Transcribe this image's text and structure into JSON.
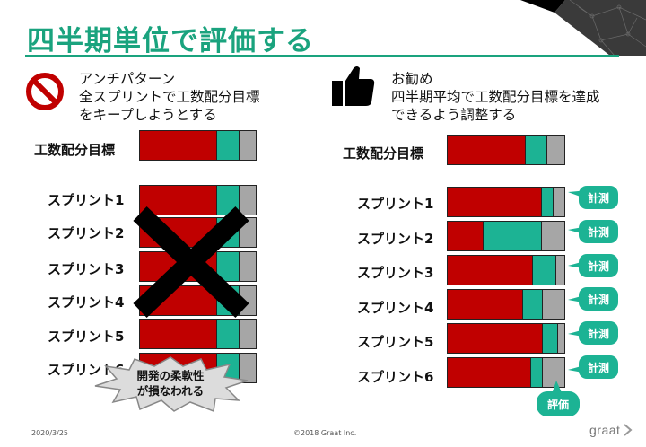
{
  "title": "四半期単位で評価する",
  "anti": {
    "lines": [
      "アンチパターン",
      "全スプリントで工数配分目標",
      "をキープしようとする"
    ],
    "icon": "no-entry-icon"
  },
  "recommended": {
    "lines": [
      "お勧め",
      "四半期平均で工数配分目標を達成",
      "できるよう調整する"
    ],
    "icon": "thumbs-up-icon"
  },
  "left": {
    "target_label": "工数配分目標",
    "target_ratio": [
      0.66,
      0.19,
      0.15
    ],
    "sprints": [
      {
        "label": "スプリント1",
        "ratio": [
          0.66,
          0.19,
          0.15
        ]
      },
      {
        "label": "スプリント2",
        "ratio": [
          0.66,
          0.19,
          0.15
        ]
      },
      {
        "label": "スプリント3",
        "ratio": [
          0.66,
          0.19,
          0.15
        ]
      },
      {
        "label": "スプリント4",
        "ratio": [
          0.66,
          0.19,
          0.15
        ]
      },
      {
        "label": "スプリント5",
        "ratio": [
          0.66,
          0.19,
          0.15
        ]
      },
      {
        "label": "スプリント6",
        "ratio": [
          0.66,
          0.19,
          0.15
        ]
      }
    ],
    "cross_icon": "cross-mark-icon",
    "burst_lines": [
      "開発の柔軟性",
      "が損なわれる"
    ]
  },
  "right": {
    "target_label": "工数配分目標",
    "target_ratio": [
      0.66,
      0.19,
      0.15
    ],
    "sprints": [
      {
        "label": "スプリント1",
        "ratio": [
          0.8,
          0.1,
          0.1
        ]
      },
      {
        "label": "スプリント2",
        "ratio": [
          0.3,
          0.5,
          0.2
        ]
      },
      {
        "label": "スプリント3",
        "ratio": [
          0.72,
          0.2,
          0.08
        ]
      },
      {
        "label": "スプリント4",
        "ratio": [
          0.64,
          0.17,
          0.19
        ]
      },
      {
        "label": "スプリント5",
        "ratio": [
          0.81,
          0.13,
          0.06
        ]
      },
      {
        "label": "スプリント6",
        "ratio": [
          0.71,
          0.1,
          0.19
        ]
      }
    ],
    "measure_label": "計測",
    "evaluate_label": "評価"
  },
  "colors": {
    "accent": "#1aa37e",
    "red": "#c00000",
    "teal": "#1cb394",
    "gray": "#a6a6a6"
  },
  "footer": {
    "date": "2020/3/25",
    "copyright": "©2018 Graat Inc.",
    "logo": "graat"
  }
}
